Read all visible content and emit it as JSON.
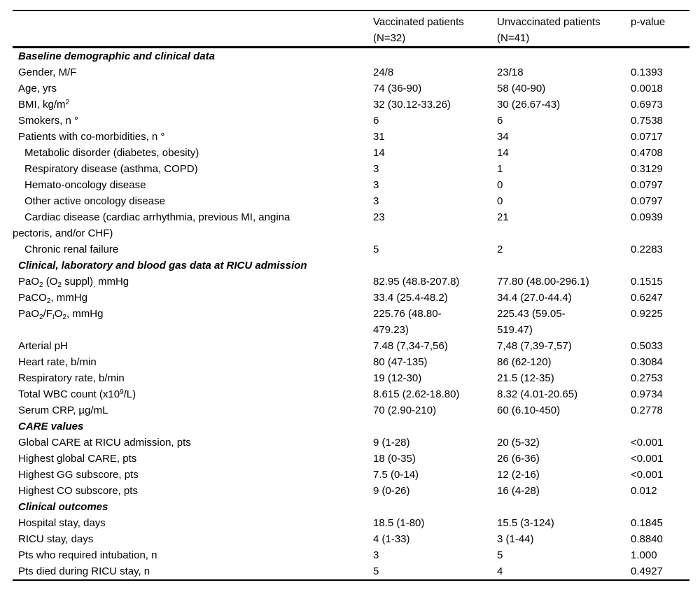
{
  "colors": {
    "text": "#000000",
    "background": "#ffffff",
    "rules": "#000000"
  },
  "table": {
    "columns": [
      {
        "label": ""
      },
      {
        "label": "Vaccinated patients\n(N=32)"
      },
      {
        "label": "Unvaccinated patients\n(N=41)"
      },
      {
        "label": "p-value"
      }
    ],
    "rows": [
      {
        "type": "section",
        "label": "Baseline demographic and clinical data"
      },
      {
        "type": "data",
        "indent": 0,
        "label": "Gender, M/F",
        "vaccinated": "24/8",
        "unvaccinated": "23/18",
        "p": "0.1393"
      },
      {
        "type": "data",
        "indent": 0,
        "label": "Age, yrs",
        "vaccinated": "74 (36-90)",
        "unvaccinated": "58 (40-90)",
        "p": "0.0018"
      },
      {
        "type": "data",
        "indent": 0,
        "label": "BMI, kg/m^2^",
        "vaccinated": "32 (30.12-33.26)",
        "unvaccinated": "30 (26.67-43)",
        "p": "0.6973"
      },
      {
        "type": "data",
        "indent": 0,
        "label": "Smokers, n °",
        "vaccinated": "6",
        "unvaccinated": "6",
        "p": "0.7538"
      },
      {
        "type": "data",
        "indent": 0,
        "label": "Patients with co-morbidities, n °",
        "vaccinated": "31",
        "unvaccinated": "34",
        "p": "0.0717"
      },
      {
        "type": "data",
        "indent": 1,
        "label": "Metabolic disorder (diabetes, obesity)",
        "vaccinated": "14",
        "unvaccinated": "14",
        "p": "0.4708"
      },
      {
        "type": "data",
        "indent": 1,
        "label": "Respiratory disease (asthma, COPD)",
        "vaccinated": "3",
        "unvaccinated": "1",
        "p": "0.3129"
      },
      {
        "type": "data",
        "indent": 1,
        "label": "Hemato-oncology disease",
        "vaccinated": "3",
        "unvaccinated": "0",
        "p": "0.0797"
      },
      {
        "type": "data",
        "indent": 1,
        "label": "Other active oncology disease",
        "vaccinated": "3",
        "unvaccinated": "0",
        "p": "0.0797"
      },
      {
        "type": "data",
        "indent": 1,
        "label": "Cardiac disease (cardiac arrhythmia, previous MI, angina\npectoris, and/or CHF)",
        "vaccinated": "23",
        "unvaccinated": "21",
        "p": "0.0939"
      },
      {
        "type": "data",
        "indent": 1,
        "label": "Chronic renal failure",
        "vaccinated": "5",
        "unvaccinated": "2",
        "p": "0.2283"
      },
      {
        "type": "section",
        "label": "Clinical, laboratory and blood gas data at RICU admission"
      },
      {
        "type": "data",
        "indent": 0,
        "label": "PaO~2~ (O~2~ suppl)~,~ mmHg",
        "vaccinated": "82.95 (48.8-207.8)",
        "unvaccinated": "77.80 (48.00-296.1)",
        "p": "0.1515"
      },
      {
        "type": "data",
        "indent": 0,
        "label": "PaCO~2~, mmHg",
        "vaccinated": "33.4 (25.4-48.2)",
        "unvaccinated": "34.4 (27.0-44.4)",
        "p": "0.6247"
      },
      {
        "type": "data",
        "indent": 0,
        "label": "PaO~2~/F~I~O~2~, mmHg",
        "vaccinated": "225.76 (48.80-\n479.23)",
        "unvaccinated": "225.43 (59.05-\n519.47)",
        "p": "0.9225"
      },
      {
        "type": "data",
        "indent": 0,
        "label": "Arterial pH",
        "vaccinated": "7.48 (7,34-7,56)",
        "unvaccinated": "7,48 (7,39-7,57)",
        "p": "0.5033"
      },
      {
        "type": "data",
        "indent": 0,
        "label": "Heart rate, b/min",
        "vaccinated": "80 (47-135)",
        "unvaccinated": "86 (62-120)",
        "p": "0.3084"
      },
      {
        "type": "data",
        "indent": 0,
        "label": "Respiratory rate, b/min",
        "vaccinated": "19 (12-30)",
        "unvaccinated": "21.5 (12-35)",
        "p": "0.2753"
      },
      {
        "type": "data",
        "indent": 0,
        "label": "Total WBC count (x10^9^/L)",
        "vaccinated": "8.615 (2.62-18.80)",
        "unvaccinated": "8.32 (4.01-20.65)",
        "p": "0.9734"
      },
      {
        "type": "data",
        "indent": 0,
        "label": "Serum CRP, µg/mL",
        "vaccinated": "70 (2.90-210)",
        "unvaccinated": "60 (6.10-450)",
        "p": "0.2778"
      },
      {
        "type": "section",
        "label": "CARE values"
      },
      {
        "type": "data",
        "indent": 0,
        "label": "Global CARE at RICU admission, pts",
        "vaccinated": "9 (1-28)",
        "unvaccinated": "20 (5-32)",
        "p": "<0.001"
      },
      {
        "type": "data",
        "indent": 0,
        "label": "Highest global CARE, pts",
        "vaccinated": "18 (0-35)",
        "unvaccinated": "26 (6-36)",
        "p": "<0.001"
      },
      {
        "type": "data",
        "indent": 0,
        "label": "Highest GG subscore, pts",
        "vaccinated": "7.5 (0-14)",
        "unvaccinated": "12 (2-16)",
        "p": "<0.001"
      },
      {
        "type": "data",
        "indent": 0,
        "label": "Highest CO subscore, pts",
        "vaccinated": "9 (0-26)",
        "unvaccinated": "16 (4-28)",
        "p": "0.012"
      },
      {
        "type": "section",
        "label": "Clinical outcomes"
      },
      {
        "type": "data",
        "indent": 0,
        "label": "Hospital stay, days",
        "vaccinated": "18.5 (1-80)",
        "unvaccinated": "15.5 (3-124)",
        "p": "0.1845"
      },
      {
        "type": "data",
        "indent": 0,
        "label": "RICU stay, days",
        "vaccinated": "4 (1-33)",
        "unvaccinated": "3 (1-44)",
        "p": "0.8840"
      },
      {
        "type": "data",
        "indent": 0,
        "label": "Pts who required intubation, n",
        "vaccinated": "3",
        "unvaccinated": "5",
        "p": "1.000"
      },
      {
        "type": "data",
        "indent": 0,
        "label": "Pts died during RICU stay, n",
        "vaccinated": "5",
        "unvaccinated": "4",
        "p": "0.4927"
      }
    ]
  }
}
